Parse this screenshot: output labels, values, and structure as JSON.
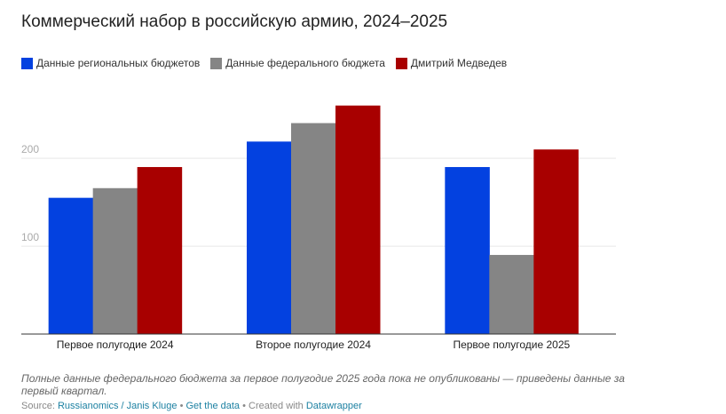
{
  "chart_data": {
    "type": "bar",
    "title": "Коммерческий набор в российскую армию, 2024–2025",
    "categories": [
      "Первое полугодие 2024",
      "Второе полугодие 2024",
      "Первое полугодие 2025"
    ],
    "series": [
      {
        "name": "Данные региональных бюджетов",
        "color": "#0341e0",
        "values": [
          155,
          219,
          190
        ]
      },
      {
        "name": "Данные федерального бюджета",
        "color": "#858585",
        "values": [
          166,
          240,
          90
        ]
      },
      {
        "name": "Дмитрий Медведев",
        "color": "#a80000",
        "values": [
          190,
          260,
          210
        ]
      }
    ],
    "yticks": [
      100,
      200
    ],
    "ylim": [
      0,
      280
    ],
    "grid": true,
    "legend_position": "top-left",
    "xlabel": "",
    "ylabel": ""
  },
  "notes": "Полные данные федерального бюджета за первое полугодие 2025 года пока не опубликованы — приведены данные за первый квартал.",
  "footer": {
    "source_label": "Source:",
    "source": "Russianomics / Janis Kluge",
    "sep": "•",
    "get_data": "Get the data",
    "created": "Created with",
    "tool": "Datawrapper"
  }
}
